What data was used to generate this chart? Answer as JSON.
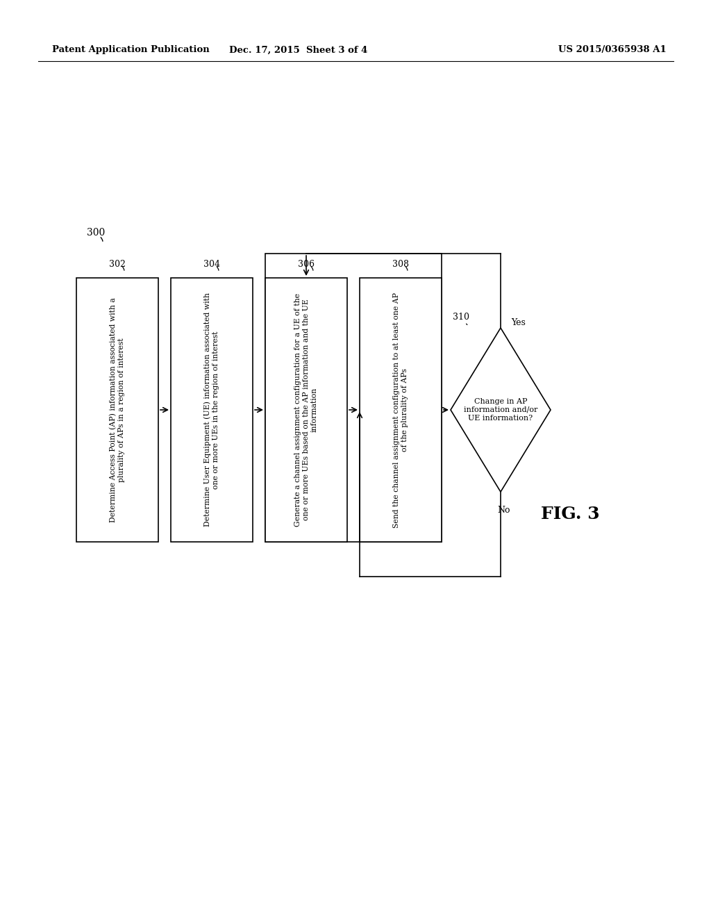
{
  "title_left": "Patent Application Publication",
  "title_center": "Dec. 17, 2015  Sheet 3 of 4",
  "title_right": "US 2015/0365938 A1",
  "fig_label": "FIG. 3",
  "diagram_label": "300",
  "background_color": "#ffffff",
  "box302_text": "Determine Access Point (AP) information associated with a\nplurality of APs in a region of interest",
  "box304_text": "Determine User Equipment (UE) information associated with\none or more UEs in the region of interest",
  "box306_text": "Generate a channel assignment configuration for a UE of the\none or more UEs based on the AP information and the UE\ninformation",
  "box308_text": "Send the channel assignment configuration to at least one AP\nof the plurality of APs",
  "diamond_text": "Change in AP\ninformation and/or\nUE information?",
  "yes_label": "Yes",
  "no_label": "No",
  "label_302": "302",
  "label_304": "304",
  "label_306": "306",
  "label_308": "308",
  "label_310": "310"
}
